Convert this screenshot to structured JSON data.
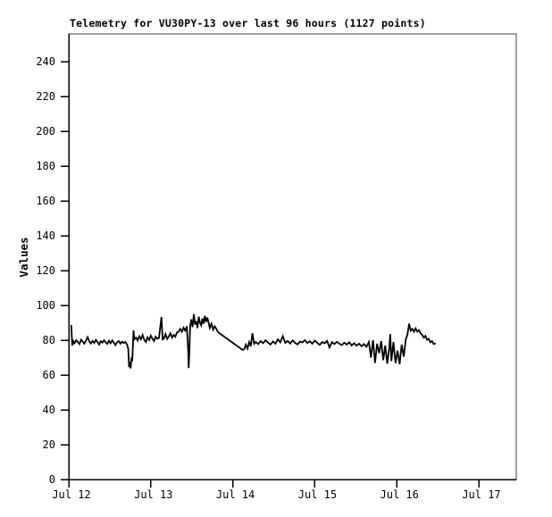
{
  "title": "Telemetry for VU30PY-13 over last 96 hours (1127 points)",
  "colors": {
    "background": "#ffffff",
    "text": "#000000",
    "data_line": "#000000",
    "frame": "#3f3f3f",
    "axis": "#000000"
  },
  "chart_data": {
    "type": "line",
    "title": "Telemetry for VU30PY-13 over last 96 hours (1127 points)",
    "xlabel": "",
    "ylabel": "Values",
    "x_tick_labels": [
      "Jul 12",
      "Jul 13",
      "Jul 14",
      "Jul 15",
      "Jul 16",
      "Jul 17"
    ],
    "y_ticks": [
      0,
      20,
      40,
      60,
      80,
      100,
      120,
      140,
      160,
      180,
      200,
      220,
      240
    ],
    "ylim": [
      0,
      255.9
    ],
    "xlim_days": [
      0,
      5.458
    ],
    "grid": false,
    "legend": "none",
    "series": [
      {
        "name": "telemetry-values",
        "points_format": "[days_since_jul12, value]",
        "points": [
          [
            0.03,
            88.7
          ],
          [
            0.036,
            83.0
          ],
          [
            0.042,
            77.0
          ],
          [
            0.055,
            79.5
          ],
          [
            0.07,
            78.3
          ],
          [
            0.09,
            80.0
          ],
          [
            0.11,
            79.0
          ],
          [
            0.13,
            77.8
          ],
          [
            0.15,
            80.3
          ],
          [
            0.17,
            79.2
          ],
          [
            0.19,
            78.0
          ],
          [
            0.21,
            79.8
          ],
          [
            0.23,
            81.8
          ],
          [
            0.25,
            79.3
          ],
          [
            0.27,
            78.1
          ],
          [
            0.29,
            79.6
          ],
          [
            0.31,
            78.4
          ],
          [
            0.33,
            80.2
          ],
          [
            0.35,
            79.0
          ],
          [
            0.37,
            77.5
          ],
          [
            0.39,
            79.4
          ],
          [
            0.41,
            78.6
          ],
          [
            0.43,
            80.0
          ],
          [
            0.45,
            78.8
          ],
          [
            0.47,
            77.9
          ],
          [
            0.49,
            79.7
          ],
          [
            0.51,
            78.2
          ],
          [
            0.53,
            79.9
          ],
          [
            0.55,
            78.5
          ],
          [
            0.57,
            77.2
          ],
          [
            0.59,
            78.9
          ],
          [
            0.61,
            79.5
          ],
          [
            0.63,
            78.0
          ],
          [
            0.65,
            79.2
          ],
          [
            0.67,
            78.4
          ],
          [
            0.69,
            79.0
          ],
          [
            0.71,
            77.6
          ],
          [
            0.725,
            75.0
          ],
          [
            0.735,
            64.5
          ],
          [
            0.745,
            67.5
          ],
          [
            0.755,
            63.8
          ],
          [
            0.765,
            70.0
          ],
          [
            0.775,
            68.0
          ],
          [
            0.79,
            85.6
          ],
          [
            0.8,
            80.5
          ],
          [
            0.82,
            81.5
          ],
          [
            0.84,
            79.8
          ],
          [
            0.86,
            82.3
          ],
          [
            0.88,
            80.5
          ],
          [
            0.9,
            83.1
          ],
          [
            0.92,
            80.2
          ],
          [
            0.94,
            78.9
          ],
          [
            0.96,
            81.7
          ],
          [
            0.98,
            80.1
          ],
          [
            1.0,
            82.6
          ],
          [
            1.02,
            81.0
          ],
          [
            1.04,
            79.5
          ],
          [
            1.06,
            82.0
          ],
          [
            1.08,
            80.8
          ],
          [
            1.1,
            81.3
          ],
          [
            1.13,
            93.3
          ],
          [
            1.145,
            80.5
          ],
          [
            1.16,
            81.0
          ],
          [
            1.18,
            83.5
          ],
          [
            1.2,
            80.7
          ],
          [
            1.22,
            82.2
          ],
          [
            1.24,
            84.0
          ],
          [
            1.26,
            81.5
          ],
          [
            1.28,
            83.0
          ],
          [
            1.3,
            82.0
          ],
          [
            1.32,
            84.5
          ],
          [
            1.34,
            85.0
          ],
          [
            1.36,
            86.5
          ],
          [
            1.38,
            84.8
          ],
          [
            1.4,
            87.2
          ],
          [
            1.42,
            85.5
          ],
          [
            1.44,
            88.0
          ],
          [
            1.455,
            75.0
          ],
          [
            1.462,
            64.0
          ],
          [
            1.47,
            72.0
          ],
          [
            1.48,
            88.0
          ],
          [
            1.495,
            92.0
          ],
          [
            1.51,
            87.5
          ],
          [
            1.525,
            94.9
          ],
          [
            1.54,
            89.0
          ],
          [
            1.555,
            91.0
          ],
          [
            1.57,
            87.0
          ],
          [
            1.585,
            93.5
          ],
          [
            1.6,
            90.0
          ],
          [
            1.615,
            88.5
          ],
          [
            1.63,
            92.5
          ],
          [
            1.645,
            89.5
          ],
          [
            1.66,
            94.0
          ],
          [
            1.675,
            90.5
          ],
          [
            1.69,
            93.0
          ],
          [
            1.7,
            91.0
          ],
          [
            1.72,
            87.0
          ],
          [
            1.74,
            89.5
          ],
          [
            1.76,
            86.0
          ],
          [
            1.78,
            88.0
          ],
          [
            1.8,
            86.5
          ],
          [
            1.82,
            84.6
          ],
          [
            1.95,
            80.2
          ],
          [
            2.12,
            74.4
          ],
          [
            2.14,
            74.8
          ],
          [
            2.16,
            77.5
          ],
          [
            2.18,
            75.2
          ],
          [
            2.2,
            78.9
          ],
          [
            2.22,
            76.5
          ],
          [
            2.24,
            84.0
          ],
          [
            2.26,
            78.0
          ],
          [
            2.28,
            79.0
          ],
          [
            2.31,
            77.8
          ],
          [
            2.34,
            79.5
          ],
          [
            2.37,
            78.3
          ],
          [
            2.4,
            80.0
          ],
          [
            2.43,
            78.6
          ],
          [
            2.46,
            77.5
          ],
          [
            2.49,
            79.3
          ],
          [
            2.52,
            78.0
          ],
          [
            2.55,
            80.5
          ],
          [
            2.58,
            78.8
          ],
          [
            2.61,
            82.3
          ],
          [
            2.64,
            78.5
          ],
          [
            2.67,
            79.6
          ],
          [
            2.7,
            78.1
          ],
          [
            2.73,
            79.9
          ],
          [
            2.76,
            78.4
          ],
          [
            2.79,
            77.6
          ],
          [
            2.82,
            79.2
          ],
          [
            2.85,
            78.7
          ],
          [
            2.88,
            80.1
          ],
          [
            2.91,
            78.3
          ],
          [
            2.94,
            79.4
          ],
          [
            2.97,
            78.0
          ],
          [
            3.0,
            79.8
          ],
          [
            3.03,
            78.5
          ],
          [
            3.06,
            77.3
          ],
          [
            3.09,
            79.0
          ],
          [
            3.12,
            78.2
          ],
          [
            3.15,
            79.6
          ],
          [
            3.18,
            75.8
          ],
          [
            3.21,
            78.9
          ],
          [
            3.24,
            77.8
          ],
          [
            3.27,
            79.1
          ],
          [
            3.3,
            78.0
          ],
          [
            3.33,
            77.2
          ],
          [
            3.36,
            78.6
          ],
          [
            3.39,
            77.5
          ],
          [
            3.42,
            78.8
          ],
          [
            3.45,
            77.0
          ],
          [
            3.48,
            78.3
          ],
          [
            3.51,
            76.8
          ],
          [
            3.54,
            78.0
          ],
          [
            3.57,
            76.5
          ],
          [
            3.6,
            77.8
          ],
          [
            3.63,
            76.2
          ],
          [
            3.66,
            79.0
          ],
          [
            3.685,
            70.0
          ],
          [
            3.71,
            80.0
          ],
          [
            3.735,
            67.0
          ],
          [
            3.76,
            78.0
          ],
          [
            3.785,
            72.5
          ],
          [
            3.81,
            79.5
          ],
          [
            3.835,
            68.5
          ],
          [
            3.86,
            77.0
          ],
          [
            3.885,
            66.5
          ],
          [
            3.91,
            76.0
          ],
          [
            3.92,
            83.5
          ],
          [
            3.935,
            68.0
          ],
          [
            3.96,
            79.0
          ],
          [
            3.985,
            66.8
          ],
          [
            4.01,
            74.0
          ],
          [
            4.035,
            66.2
          ],
          [
            4.06,
            77.5
          ],
          [
            4.085,
            70.5
          ],
          [
            4.11,
            80.5
          ],
          [
            4.13,
            83.0
          ],
          [
            4.15,
            89.5
          ],
          [
            4.17,
            85.5
          ],
          [
            4.19,
            86.5
          ],
          [
            4.21,
            84.8
          ],
          [
            4.23,
            86.8
          ],
          [
            4.25,
            85.0
          ],
          [
            4.27,
            85.8
          ],
          [
            4.29,
            84.0
          ],
          [
            4.31,
            83.0
          ],
          [
            4.33,
            81.5
          ],
          [
            4.35,
            82.5
          ],
          [
            4.37,
            80.2
          ],
          [
            4.39,
            80.8
          ],
          [
            4.41,
            78.8
          ],
          [
            4.43,
            79.5
          ],
          [
            4.45,
            77.8
          ],
          [
            4.475,
            78.2
          ]
        ]
      }
    ]
  }
}
